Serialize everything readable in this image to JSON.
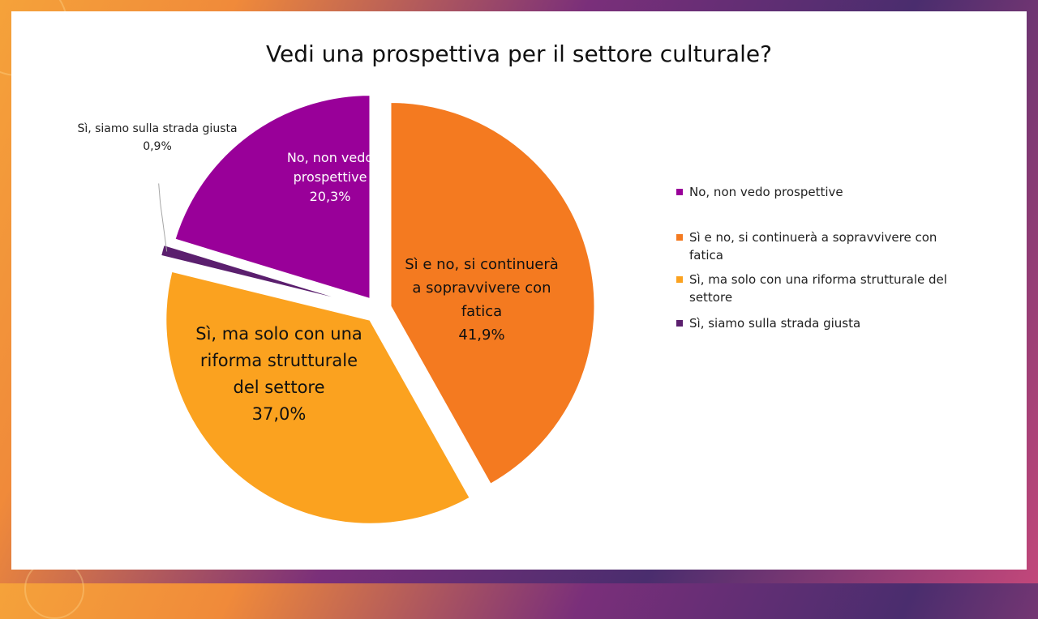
{
  "chart_data": {
    "type": "pie",
    "title": "Vedi una prospettiva per il settore culturale?",
    "slices": [
      {
        "name": "No, non vedo prospettive",
        "value": 20.3,
        "label": "20,3%",
        "color": "#990099",
        "label_lines": [
          "No, non vedo",
          "prospettive",
          "20,3%"
        ]
      },
      {
        "name": "Sì e no, si continuerà a sopravvivere con fatica",
        "value": 41.9,
        "label": "41,9%",
        "color": "#f47a20",
        "label_lines": [
          "Sì e no, si continuerà",
          "a sopravvivere con",
          "fatica",
          "41,9%"
        ]
      },
      {
        "name": "Sì, ma solo con una riforma strutturale del settore",
        "value": 37.0,
        "label": "37,0%",
        "color": "#fba21f",
        "label_lines": [
          "Sì, ma solo con una",
          "riforma strutturale",
          "del settore",
          "37,0%"
        ]
      },
      {
        "name": "Sì, siamo sulla strada giusta",
        "value": 0.9,
        "label": "0,9%",
        "color": "#5b1f6e",
        "label_lines": [
          "Sì, siamo sulla strada giusta",
          "0,9%"
        ]
      }
    ],
    "legend": [
      {
        "lines": [
          "No, non vedo prospettive"
        ],
        "color": "#990099"
      },
      {
        "lines": [
          "Sì e no, si continuerà a sopravvivere con",
          "fatica"
        ],
        "color": "#f47a20"
      },
      {
        "lines": [
          "Sì, ma solo con una riforma strutturale del",
          "settore"
        ],
        "color": "#fba21f"
      },
      {
        "lines": [
          "Sì, siamo sulla strada giusta"
        ],
        "color": "#5b1f6e"
      }
    ],
    "legend_position": "right"
  }
}
